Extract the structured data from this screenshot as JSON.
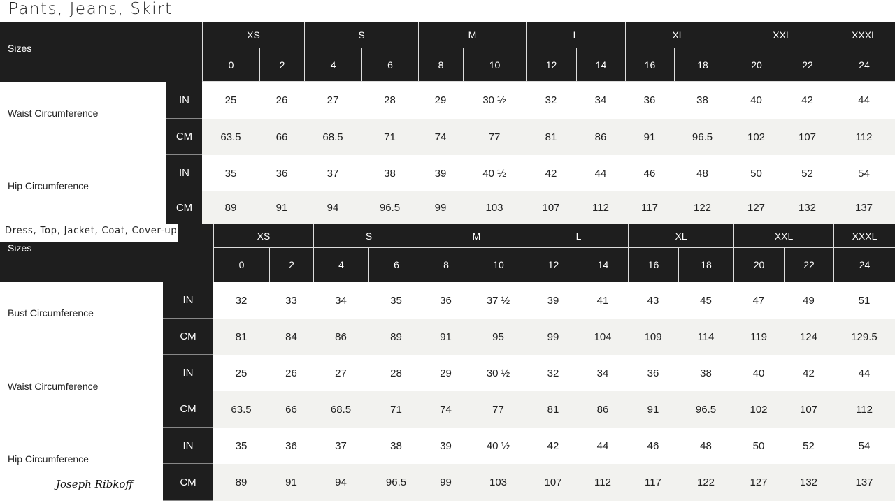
{
  "title": "Pants, Jeans, Skirt",
  "brand_signature": "Joseph Ribkoff",
  "tables": [
    {
      "sizes_label": "Sizes",
      "groups": [
        "XS",
        "S",
        "M",
        "L",
        "XL",
        "XXL",
        "XXXL"
      ],
      "numeric_sizes": [
        "0",
        "2",
        "4",
        "6",
        "8",
        "10",
        "12",
        "14",
        "16",
        "18",
        "20",
        "22",
        "24"
      ],
      "measurements": [
        {
          "label": "Waist Circumference",
          "rows": [
            {
              "unit": "IN",
              "values": [
                "25",
                "26",
                "27",
                "28",
                "29",
                "30 ½",
                "32",
                "34",
                "36",
                "38",
                "40",
                "42",
                "44"
              ]
            },
            {
              "unit": "CM",
              "values": [
                "63.5",
                "66",
                "68.5",
                "71",
                "74",
                "77",
                "81",
                "86",
                "91",
                "96.5",
                "102",
                "107",
                "112"
              ]
            }
          ]
        },
        {
          "label": "Hip Circumference",
          "rows": [
            {
              "unit": "IN",
              "values": [
                "35",
                "36",
                "37",
                "38",
                "39",
                "40 ½",
                "42",
                "44",
                "46",
                "48",
                "50",
                "52",
                "54"
              ]
            },
            {
              "unit": "CM",
              "values": [
                "89",
                "91",
                "94",
                "96.5",
                "99",
                "103",
                "107",
                "112",
                "117",
                "122",
                "127",
                "132",
                "137"
              ]
            }
          ]
        }
      ]
    },
    {
      "category_label": "Dress, Top, Jacket, Coat, Cover-up",
      "sizes_label": "Sizes",
      "groups": [
        "XS",
        "S",
        "M",
        "L",
        "XL",
        "XXL",
        "XXXL"
      ],
      "numeric_sizes": [
        "0",
        "2",
        "4",
        "6",
        "8",
        "10",
        "12",
        "14",
        "16",
        "18",
        "20",
        "22",
        "24"
      ],
      "measurements": [
        {
          "label": "Bust Circumference",
          "rows": [
            {
              "unit": "IN",
              "values": [
                "32",
                "33",
                "34",
                "35",
                "36",
                "37 ½",
                "39",
                "41",
                "43",
                "45",
                "47",
                "49",
                "51"
              ]
            },
            {
              "unit": "CM",
              "values": [
                "81",
                "84",
                "86",
                "89",
                "91",
                "95",
                "99",
                "104",
                "109",
                "114",
                "119",
                "124",
                "129.5"
              ]
            }
          ]
        },
        {
          "label": "Waist Circumference",
          "rows": [
            {
              "unit": "IN",
              "values": [
                "25",
                "26",
                "27",
                "28",
                "29",
                "30 ½",
                "32",
                "34",
                "36",
                "38",
                "40",
                "42",
                "44"
              ]
            },
            {
              "unit": "CM",
              "values": [
                "63.5",
                "66",
                "68.5",
                "71",
                "74",
                "77",
                "81",
                "86",
                "91",
                "96.5",
                "102",
                "107",
                "112"
              ]
            }
          ]
        },
        {
          "label": "Hip Circumference",
          "rows": [
            {
              "unit": "IN",
              "values": [
                "35",
                "36",
                "37",
                "38",
                "39",
                "40 ½",
                "42",
                "44",
                "46",
                "48",
                "50",
                "52",
                "54"
              ]
            },
            {
              "unit": "CM",
              "values": [
                "89",
                "91",
                "94",
                "96.5",
                "99",
                "103",
                "107",
                "112",
                "117",
                "122",
                "127",
                "132",
                "137"
              ]
            }
          ]
        }
      ]
    }
  ],
  "colors": {
    "header": "#1e1e1e",
    "alt_row": "#f2f2ef"
  }
}
